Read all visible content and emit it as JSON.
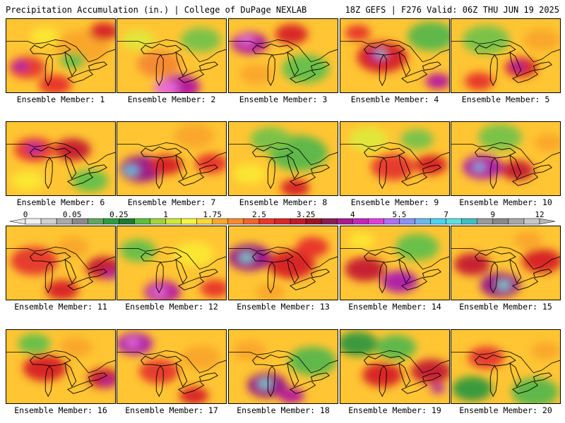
{
  "header": {
    "left": "Precipitation Accumulation (in.) | College of DuPage NEXLAB",
    "right": "18Z GEFS | F276 Valid: 06Z THU JUN 19 2025"
  },
  "panels": [
    {
      "label": "Ensemble Member: 1",
      "blobs": [
        {
          "x": 30,
          "y": 70,
          "r": 20,
          "c": "#e63d2e"
        },
        {
          "x": 20,
          "y": 68,
          "r": 9,
          "c": "#b020a8"
        },
        {
          "x": 110,
          "y": 40,
          "r": 30,
          "c": "#f9a72c"
        },
        {
          "x": 140,
          "y": 18,
          "r": 16,
          "c": "#d82828"
        },
        {
          "x": 70,
          "y": 95,
          "r": 18,
          "c": "#e8392b"
        },
        {
          "x": 95,
          "y": 60,
          "r": 14,
          "c": "#6bc04a"
        },
        {
          "x": 55,
          "y": 25,
          "r": 16,
          "c": "#fbe630"
        }
      ]
    },
    {
      "label": "Ensemble Member: 2",
      "blobs": [
        {
          "x": 90,
          "y": 98,
          "r": 22,
          "c": "#b81e9a"
        },
        {
          "x": 70,
          "y": 100,
          "r": 14,
          "c": "#e66bd8"
        },
        {
          "x": 60,
          "y": 65,
          "r": 24,
          "c": "#f58a30"
        },
        {
          "x": 120,
          "y": 30,
          "r": 22,
          "c": "#7bc24a"
        },
        {
          "x": 30,
          "y": 30,
          "r": 18,
          "c": "#e2e63a"
        }
      ]
    },
    {
      "label": "Ensemble Member: 3",
      "blobs": [
        {
          "x": 30,
          "y": 35,
          "r": 20,
          "c": "#b8209a"
        },
        {
          "x": 25,
          "y": 30,
          "r": 9,
          "c": "#e66bd8"
        },
        {
          "x": 90,
          "y": 22,
          "r": 18,
          "c": "#d82828"
        },
        {
          "x": 110,
          "y": 72,
          "r": 26,
          "c": "#6bc04a"
        },
        {
          "x": 40,
          "y": 80,
          "r": 18,
          "c": "#f9a72c"
        }
      ]
    },
    {
      "label": "Ensemble Member: 4",
      "blobs": [
        {
          "x": 60,
          "y": 55,
          "r": 28,
          "c": "#d8262c"
        },
        {
          "x": 55,
          "y": 52,
          "r": 10,
          "c": "#b020a8"
        },
        {
          "x": 58,
          "y": 50,
          "r": 5,
          "c": "#5ee0e0"
        },
        {
          "x": 140,
          "y": 90,
          "r": 14,
          "c": "#b81e9a"
        },
        {
          "x": 130,
          "y": 25,
          "r": 26,
          "c": "#5fb848"
        },
        {
          "x": 25,
          "y": 20,
          "r": 14,
          "c": "#e8392b"
        }
      ]
    },
    {
      "label": "Ensemble Member: 5",
      "blobs": [
        {
          "x": 100,
          "y": 70,
          "r": 18,
          "c": "#d82828"
        },
        {
          "x": 95,
          "y": 68,
          "r": 8,
          "c": "#b020a8"
        },
        {
          "x": 50,
          "y": 30,
          "r": 26,
          "c": "#7bc24a"
        },
        {
          "x": 130,
          "y": 30,
          "r": 20,
          "c": "#f9a72c"
        },
        {
          "x": 40,
          "y": 90,
          "r": 16,
          "c": "#e8392b"
        }
      ]
    },
    {
      "label": "Ensemble Member: 6",
      "blobs": [
        {
          "x": 40,
          "y": 40,
          "r": 22,
          "c": "#e63d2e"
        },
        {
          "x": 40,
          "y": 38,
          "r": 9,
          "c": "#b020a8"
        },
        {
          "x": 95,
          "y": 40,
          "r": 20,
          "c": "#c72030"
        },
        {
          "x": 120,
          "y": 85,
          "r": 20,
          "c": "#6bc04a"
        },
        {
          "x": 30,
          "y": 85,
          "r": 18,
          "c": "#fbe630"
        }
      ]
    },
    {
      "label": "Ensemble Member: 7",
      "blobs": [
        {
          "x": 35,
          "y": 68,
          "r": 24,
          "c": "#9a1c8a"
        },
        {
          "x": 20,
          "y": 70,
          "r": 8,
          "c": "#4ec8e8"
        },
        {
          "x": 70,
          "y": 62,
          "r": 18,
          "c": "#d82828"
        },
        {
          "x": 110,
          "y": 20,
          "r": 22,
          "c": "#f9a72c"
        },
        {
          "x": 135,
          "y": 60,
          "r": 18,
          "c": "#e8392b"
        }
      ]
    },
    {
      "label": "Ensemble Member: 8",
      "blobs": [
        {
          "x": 100,
          "y": 45,
          "r": 32,
          "c": "#5fb848"
        },
        {
          "x": 60,
          "y": 25,
          "r": 22,
          "c": "#7bc24a"
        },
        {
          "x": 95,
          "y": 95,
          "r": 16,
          "c": "#d82828"
        },
        {
          "x": 30,
          "y": 75,
          "r": 18,
          "c": "#fbe630"
        }
      ]
    },
    {
      "label": "Ensemble Member: 9",
      "blobs": [
        {
          "x": 75,
          "y": 65,
          "r": 24,
          "c": "#e63d2e"
        },
        {
          "x": 130,
          "y": 62,
          "r": 18,
          "c": "#d82828"
        },
        {
          "x": 40,
          "y": 25,
          "r": 22,
          "c": "#e2e63a"
        },
        {
          "x": 110,
          "y": 25,
          "r": 18,
          "c": "#7bc24a"
        }
      ]
    },
    {
      "label": "Ensemble Member: 10",
      "blobs": [
        {
          "x": 45,
          "y": 65,
          "r": 22,
          "c": "#b020a8"
        },
        {
          "x": 40,
          "y": 65,
          "r": 6,
          "c": "#4ec8e8"
        },
        {
          "x": 95,
          "y": 70,
          "r": 18,
          "c": "#c72030"
        },
        {
          "x": 70,
          "y": 22,
          "r": 24,
          "c": "#7bc24a"
        },
        {
          "x": 140,
          "y": 30,
          "r": 16,
          "c": "#f9a72c"
        }
      ]
    },
    {
      "label": "Ensemble Member: 11",
      "blobs": [
        {
          "x": 40,
          "y": 50,
          "r": 26,
          "c": "#e63d2e"
        },
        {
          "x": 140,
          "y": 60,
          "r": 20,
          "c": "#c72030"
        },
        {
          "x": 150,
          "y": 70,
          "r": 8,
          "c": "#b020a8"
        },
        {
          "x": 80,
          "y": 92,
          "r": 18,
          "c": "#d82828"
        },
        {
          "x": 95,
          "y": 30,
          "r": 18,
          "c": "#f9a72c"
        }
      ]
    },
    {
      "label": "Ensemble Member: 12",
      "blobs": [
        {
          "x": 65,
          "y": 95,
          "r": 20,
          "c": "#b81e9a"
        },
        {
          "x": 60,
          "y": 95,
          "r": 9,
          "c": "#e66bd8"
        },
        {
          "x": 30,
          "y": 35,
          "r": 20,
          "c": "#6bc04a"
        },
        {
          "x": 110,
          "y": 40,
          "r": 22,
          "c": "#fbe630"
        },
        {
          "x": 140,
          "y": 90,
          "r": 16,
          "c": "#e8392b"
        }
      ]
    },
    {
      "label": "Ensemble Member: 13",
      "blobs": [
        {
          "x": 30,
          "y": 45,
          "r": 24,
          "c": "#9a1c8a"
        },
        {
          "x": 25,
          "y": 45,
          "r": 7,
          "c": "#5ee0e0"
        },
        {
          "x": 90,
          "y": 55,
          "r": 26,
          "c": "#d82828"
        },
        {
          "x": 120,
          "y": 30,
          "r": 18,
          "c": "#e8392b"
        },
        {
          "x": 60,
          "y": 95,
          "r": 16,
          "c": "#f9a72c"
        }
      ]
    },
    {
      "label": "Ensemble Member: 14",
      "blobs": [
        {
          "x": 35,
          "y": 62,
          "r": 22,
          "c": "#c72030"
        },
        {
          "x": 85,
          "y": 80,
          "r": 20,
          "c": "#b020a8"
        },
        {
          "x": 110,
          "y": 30,
          "r": 24,
          "c": "#6bc04a"
        },
        {
          "x": 30,
          "y": 20,
          "r": 14,
          "c": "#fbe630"
        }
      ]
    },
    {
      "label": "Ensemble Member: 15",
      "blobs": [
        {
          "x": 70,
          "y": 85,
          "r": 22,
          "c": "#9a1c8a"
        },
        {
          "x": 75,
          "y": 85,
          "r": 7,
          "c": "#5ee0e0"
        },
        {
          "x": 30,
          "y": 55,
          "r": 20,
          "c": "#c72030"
        },
        {
          "x": 130,
          "y": 50,
          "r": 22,
          "c": "#d82828"
        },
        {
          "x": 110,
          "y": 20,
          "r": 16,
          "c": "#f9a72c"
        }
      ]
    },
    {
      "label": "Ensemble Member: 16",
      "blobs": [
        {
          "x": 55,
          "y": 55,
          "r": 24,
          "c": "#d82828"
        },
        {
          "x": 140,
          "y": 70,
          "r": 18,
          "c": "#c72030"
        },
        {
          "x": 145,
          "y": 75,
          "r": 7,
          "c": "#b020a8"
        },
        {
          "x": 40,
          "y": 20,
          "r": 18,
          "c": "#6bc04a"
        },
        {
          "x": 100,
          "y": 25,
          "r": 18,
          "c": "#f9a72c"
        }
      ]
    },
    {
      "label": "Ensemble Member: 17",
      "blobs": [
        {
          "x": 25,
          "y": 20,
          "r": 20,
          "c": "#b020a8"
        },
        {
          "x": 22,
          "y": 18,
          "r": 8,
          "c": "#e66bd8"
        },
        {
          "x": 60,
          "y": 60,
          "r": 22,
          "c": "#e63d2e"
        },
        {
          "x": 120,
          "y": 40,
          "r": 22,
          "c": "#f9a72c"
        },
        {
          "x": 110,
          "y": 95,
          "r": 16,
          "c": "#d82828"
        }
      ]
    },
    {
      "label": "Ensemble Member: 18",
      "blobs": [
        {
          "x": 55,
          "y": 80,
          "r": 22,
          "c": "#9a1c8a"
        },
        {
          "x": 52,
          "y": 78,
          "r": 7,
          "c": "#5ee0e0"
        },
        {
          "x": 120,
          "y": 45,
          "r": 26,
          "c": "#5fb848"
        },
        {
          "x": 30,
          "y": 30,
          "r": 18,
          "c": "#f9a72c"
        },
        {
          "x": 90,
          "y": 95,
          "r": 14,
          "c": "#b81e9a"
        }
      ]
    },
    {
      "label": "Ensemble Member: 19",
      "blobs": [
        {
          "x": 25,
          "y": 20,
          "r": 22,
          "c": "#3a9a3e"
        },
        {
          "x": 80,
          "y": 25,
          "r": 22,
          "c": "#5fb848"
        },
        {
          "x": 60,
          "y": 65,
          "r": 22,
          "c": "#d82828"
        },
        {
          "x": 130,
          "y": 60,
          "r": 22,
          "c": "#c72030"
        },
        {
          "x": 140,
          "y": 85,
          "r": 8,
          "c": "#b020a8"
        }
      ]
    },
    {
      "label": "Ensemble Member: 20",
      "blobs": [
        {
          "x": 50,
          "y": 40,
          "r": 20,
          "c": "#e63d2e"
        },
        {
          "x": 30,
          "y": 85,
          "r": 22,
          "c": "#3a9a3e"
        },
        {
          "x": 120,
          "y": 90,
          "r": 26,
          "c": "#5fb848"
        },
        {
          "x": 135,
          "y": 30,
          "r": 16,
          "c": "#f9a72c"
        }
      ]
    }
  ],
  "colorbar": {
    "labels": [
      "0",
      "0.05",
      "0.25",
      "1",
      "1.75",
      "2.5",
      "3.25",
      "4",
      "5.5",
      "7",
      "9",
      "12"
    ],
    "colors": [
      "#f0f0f0",
      "#d0d0d0",
      "#aaaaaa",
      "#8a8a8a",
      "#64a564",
      "#2e9d3c",
      "#1f7a2f",
      "#5cbf3c",
      "#9ed63a",
      "#cfe83a",
      "#f5f542",
      "#fbd835",
      "#f9a72c",
      "#f58a30",
      "#f0642c",
      "#e8392b",
      "#d82828",
      "#c01c28",
      "#9e1420",
      "#881e4f",
      "#a81e8c",
      "#c228b8",
      "#e040d8",
      "#b070f0",
      "#8a94f0",
      "#6cb8ee",
      "#4ed2ee",
      "#5ee0e0",
      "#40bfc0",
      "#9a9a9a",
      "#888888",
      "#a8a8a8",
      "#c8c8c8"
    ]
  },
  "colors": {
    "background": "#ffc533",
    "outline": "#000000"
  }
}
